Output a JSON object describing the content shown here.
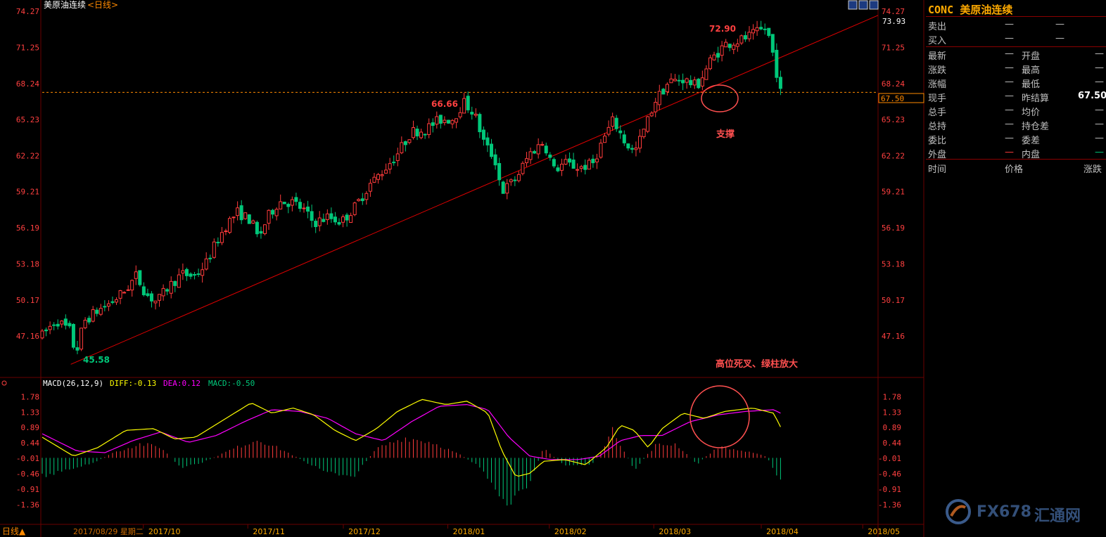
{
  "colors": {
    "up": "#ff3b3b",
    "down": "#00c87a",
    "axis_text": "#ff4040",
    "grid": "#4a0000",
    "trendline": "#e00000",
    "support_level": "#ff8a00",
    "diff": "#ffff00",
    "dea": "#ff00ff",
    "annotation": "#ff5050",
    "panel_title": "#ffaa00"
  },
  "header": {
    "title": "美原油连续",
    "period": "<日线>",
    "icons": [
      "layout-icon",
      "window-icon",
      "grid-icon"
    ]
  },
  "annotations": {
    "support": "支撑",
    "death_cross": "高位死叉、绿柱放大",
    "high_label": "72.90",
    "mid_label": "66.66",
    "low_label": "45.58",
    "top_right": "73.93",
    "current_box": "67.50"
  },
  "macd_legend": {
    "name": "MACD(26,12,9)",
    "diff": "DIFF:-0.13",
    "dea": "DEA:0.12",
    "macd": "MACD:-0.50"
  },
  "bottom": {
    "period_button": "日线▲",
    "date_label": "2017/08/29 星期二"
  },
  "panel": {
    "code": "CONC",
    "name": "美原油连续",
    "rows": [
      {
        "label": "卖出",
        "v1": "—",
        "v2": "—"
      },
      {
        "label": "买入",
        "v1": "—",
        "v2": "—"
      },
      {
        "label": "最新",
        "v1": "—",
        "label2": "开盘",
        "v2": "—"
      },
      {
        "label": "涨跌",
        "v1": "—",
        "label2": "最高",
        "v2": "—"
      },
      {
        "label": "涨幅",
        "v1": "—",
        "label2": "最低",
        "v2": "—"
      },
      {
        "label": "现手",
        "v1": "—",
        "label2": "昨结算",
        "v2": "67.50"
      },
      {
        "label": "总手",
        "v1": "—",
        "label2": "均价",
        "v2": "—"
      },
      {
        "label": "总持",
        "v1": "—",
        "label2": "持仓差",
        "v2": "—"
      },
      {
        "label": "委比",
        "v1": "—",
        "label2": "委差",
        "v2": "—"
      },
      {
        "label": "外盘",
        "v1": "—",
        "label2": "内盘",
        "v2": "—"
      }
    ],
    "ticks_header": [
      "时间",
      "价格",
      "涨跌"
    ]
  },
  "watermark": {
    "text1": "FX678",
    "text2": "汇通网"
  },
  "chart_data": {
    "type": "candlestick",
    "x_labels": [
      "2017/10",
      "2017/11",
      "2017/12",
      "2018/01",
      "2018/02",
      "2018/03",
      "2018/04",
      "2018/05"
    ],
    "price_ticks": [
      "74.27",
      "71.25",
      "68.24",
      "65.23",
      "62.22",
      "59.21",
      "56.19",
      "53.18",
      "50.17",
      "47.16"
    ],
    "macd_ticks": [
      "1.78",
      "1.33",
      "0.89",
      "0.44",
      "-0.01",
      "-0.46",
      "-0.91",
      "-1.36"
    ],
    "price_range": [
      44.7,
      74.27
    ],
    "macd_range": [
      -1.75,
      1.95
    ],
    "support_level": 67.5,
    "trendline": {
      "from": {
        "x": 0.038,
        "y": 44.8
      },
      "to": {
        "x": 1.0,
        "y": 73.93
      }
    },
    "price_path": [
      [
        0.0,
        47.2
      ],
      [
        0.02,
        48.5
      ],
      [
        0.04,
        47.6
      ],
      [
        0.048,
        45.58
      ],
      [
        0.06,
        48.4
      ],
      [
        0.08,
        49.3
      ],
      [
        0.1,
        50.0
      ],
      [
        0.12,
        51.0
      ],
      [
        0.135,
        52.2
      ],
      [
        0.15,
        50.6
      ],
      [
        0.165,
        50.0
      ],
      [
        0.18,
        51.2
      ],
      [
        0.2,
        52.3
      ],
      [
        0.22,
        52.2
      ],
      [
        0.235,
        53.2
      ],
      [
        0.25,
        55.0
      ],
      [
        0.265,
        56.5
      ],
      [
        0.28,
        57.5
      ],
      [
        0.3,
        56.8
      ],
      [
        0.31,
        55.3
      ],
      [
        0.325,
        57.2
      ],
      [
        0.34,
        58.4
      ],
      [
        0.36,
        58.3
      ],
      [
        0.375,
        57.7
      ],
      [
        0.39,
        56.6
      ],
      [
        0.41,
        57.1
      ],
      [
        0.43,
        56.7
      ],
      [
        0.45,
        58.0
      ],
      [
        0.47,
        59.8
      ],
      [
        0.49,
        61.0
      ],
      [
        0.51,
        62.4
      ],
      [
        0.53,
        64.2
      ],
      [
        0.55,
        64.4
      ],
      [
        0.57,
        65.2
      ],
      [
        0.59,
        65.3
      ],
      [
        0.605,
        66.66
      ],
      [
        0.62,
        65.8
      ],
      [
        0.635,
        63.2
      ],
      [
        0.65,
        61.9
      ],
      [
        0.66,
        59.2
      ],
      [
        0.68,
        60.3
      ],
      [
        0.7,
        62.4
      ],
      [
        0.72,
        63.4
      ],
      [
        0.735,
        61.0
      ],
      [
        0.75,
        61.6
      ],
      [
        0.77,
        61.2
      ],
      [
        0.79,
        61.5
      ],
      [
        0.805,
        63.5
      ],
      [
        0.82,
        65.2
      ],
      [
        0.835,
        63.5
      ],
      [
        0.85,
        62.4
      ],
      [
        0.865,
        64.5
      ],
      [
        0.88,
        66.8
      ],
      [
        0.9,
        68.4
      ],
      [
        0.92,
        68.6
      ],
      [
        0.94,
        68.0
      ],
      [
        0.96,
        70.2
      ],
      [
        0.98,
        71.5
      ],
      [
        1.0,
        71.8
      ],
      [
        1.02,
        72.3
      ],
      [
        1.04,
        72.9
      ],
      [
        1.05,
        70.5
      ],
      [
        1.06,
        67.5
      ]
    ],
    "macd_diff_path": [
      [
        0.0,
        0.6
      ],
      [
        0.045,
        0.05
      ],
      [
        0.08,
        0.3
      ],
      [
        0.12,
        0.8
      ],
      [
        0.16,
        0.85
      ],
      [
        0.19,
        0.55
      ],
      [
        0.22,
        0.6
      ],
      [
        0.26,
        1.1
      ],
      [
        0.3,
        1.6
      ],
      [
        0.33,
        1.3
      ],
      [
        0.36,
        1.45
      ],
      [
        0.39,
        1.25
      ],
      [
        0.42,
        0.8
      ],
      [
        0.45,
        0.5
      ],
      [
        0.48,
        0.85
      ],
      [
        0.51,
        1.35
      ],
      [
        0.545,
        1.7
      ],
      [
        0.58,
        1.55
      ],
      [
        0.61,
        1.65
      ],
      [
        0.64,
        1.3
      ],
      [
        0.66,
        0.2
      ],
      [
        0.68,
        -0.55
      ],
      [
        0.7,
        -0.45
      ],
      [
        0.72,
        -0.1
      ],
      [
        0.75,
        -0.05
      ],
      [
        0.78,
        -0.2
      ],
      [
        0.81,
        0.3
      ],
      [
        0.83,
        0.95
      ],
      [
        0.85,
        0.8
      ],
      [
        0.87,
        0.3
      ],
      [
        0.89,
        0.85
      ],
      [
        0.92,
        1.3
      ],
      [
        0.95,
        1.15
      ],
      [
        0.98,
        1.35
      ],
      [
        1.02,
        1.45
      ],
      [
        1.05,
        1.3
      ],
      [
        1.06,
        0.9
      ]
    ],
    "macd_dea_path": [
      [
        0.0,
        0.7
      ],
      [
        0.05,
        0.2
      ],
      [
        0.09,
        0.15
      ],
      [
        0.13,
        0.5
      ],
      [
        0.17,
        0.75
      ],
      [
        0.21,
        0.45
      ],
      [
        0.25,
        0.65
      ],
      [
        0.29,
        1.05
      ],
      [
        0.33,
        1.4
      ],
      [
        0.37,
        1.35
      ],
      [
        0.41,
        1.15
      ],
      [
        0.45,
        0.7
      ],
      [
        0.49,
        0.5
      ],
      [
        0.53,
        1.05
      ],
      [
        0.57,
        1.5
      ],
      [
        0.61,
        1.55
      ],
      [
        0.64,
        1.4
      ],
      [
        0.67,
        0.6
      ],
      [
        0.7,
        0.05
      ],
      [
        0.73,
        -0.05
      ],
      [
        0.77,
        -0.05
      ],
      [
        0.8,
        0.05
      ],
      [
        0.83,
        0.5
      ],
      [
        0.86,
        0.65
      ],
      [
        0.89,
        0.65
      ],
      [
        0.93,
        1.05
      ],
      [
        0.97,
        1.25
      ],
      [
        1.01,
        1.35
      ],
      [
        1.05,
        1.4
      ],
      [
        1.06,
        1.3
      ]
    ],
    "macd_hist_path": [
      [
        0.0,
        -0.6
      ],
      [
        0.04,
        -0.4
      ],
      [
        0.07,
        -0.2
      ],
      [
        0.1,
        0.15
      ],
      [
        0.14,
        0.45
      ],
      [
        0.17,
        0.35
      ],
      [
        0.2,
        -0.35
      ],
      [
        0.23,
        -0.15
      ],
      [
        0.27,
        0.25
      ],
      [
        0.31,
        0.6
      ],
      [
        0.35,
        0.2
      ],
      [
        0.38,
        -0.15
      ],
      [
        0.41,
        -0.5
      ],
      [
        0.45,
        -0.55
      ],
      [
        0.48,
        0.3
      ],
      [
        0.52,
        0.65
      ],
      [
        0.56,
        0.5
      ],
      [
        0.6,
        0.1
      ],
      [
        0.63,
        -0.3
      ],
      [
        0.66,
        -1.6
      ],
      [
        0.69,
        -1.2
      ],
      [
        0.72,
        0.3
      ],
      [
        0.75,
        -0.25
      ],
      [
        0.79,
        -0.2
      ],
      [
        0.82,
        0.9
      ],
      [
        0.85,
        -0.4
      ],
      [
        0.88,
        0.4
      ],
      [
        0.91,
        0.45
      ],
      [
        0.94,
        -0.2
      ],
      [
        0.97,
        0.35
      ],
      [
        1.0,
        0.25
      ],
      [
        1.04,
        0.05
      ],
      [
        1.06,
        -0.8
      ]
    ]
  }
}
